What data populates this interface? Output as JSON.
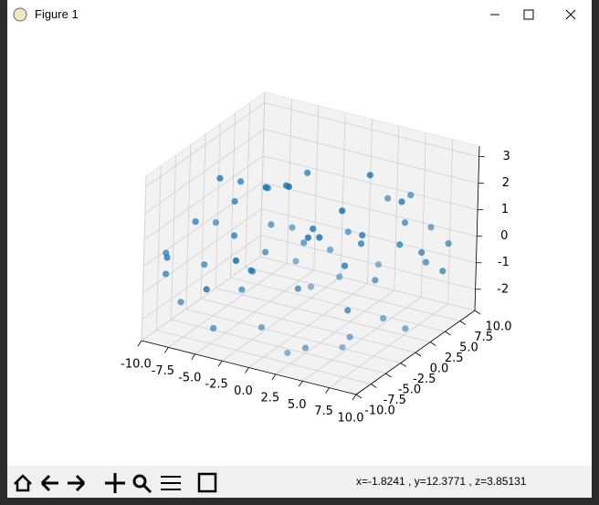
{
  "window": {
    "title": "Figure 1",
    "status": "x=-1.8241    , y=12.3771    , z=3.85131"
  },
  "chart_data": {
    "type": "scatter3d",
    "color": "#1f77b4",
    "x": [
      -9,
      -8,
      -7,
      -6,
      -5,
      -4,
      -3,
      -2,
      -1,
      0,
      1,
      2,
      3,
      4,
      5,
      6,
      7,
      8,
      9,
      -9.5,
      -7.5,
      -5.5,
      -3.5,
      -1.5,
      0.5,
      2.5,
      4.5,
      6.5,
      8.5,
      -8.5,
      -6.5,
      -4.5,
      -2.5,
      -0.5,
      1.5,
      3.5,
      5.5,
      7.5,
      9.5,
      -9,
      -6,
      -3,
      0,
      3,
      6,
      9,
      -7,
      -4,
      -1,
      2,
      5,
      8,
      -8,
      -2,
      4,
      7,
      -5,
      1,
      6,
      -10
    ],
    "y": [
      -8,
      -5,
      -9,
      -2,
      -7,
      3,
      -6,
      -4,
      1,
      -8,
      -3,
      5,
      -9,
      -1,
      2,
      -6,
      4,
      -2,
      7,
      0,
      6,
      -3,
      8,
      -7,
      9,
      -5,
      7,
      1,
      -4,
      -9,
      2,
      -8,
      5,
      -1,
      -6,
      9,
      -3,
      6,
      3,
      4,
      -7,
      -2,
      6,
      -8,
      8,
      0,
      9,
      7,
      -5,
      3,
      -9,
      8,
      -1,
      9,
      -4,
      -7,
      -3,
      7,
      5,
      -6
    ],
    "z": [
      -0.5,
      1.1,
      -1.2,
      0.3,
      -2.3,
      1.6,
      -0.8,
      0.4,
      2.7,
      -1.6,
      0.9,
      -0.3,
      -2.1,
      1.3,
      -0.9,
      0.6,
      2.2,
      -1.4,
      0.1,
      -2.4,
      0.7,
      1.8,
      -1.1,
      0.2,
      1.5,
      -2.6,
      -0.4,
      2.5,
      1.0,
      0.5,
      -1.7,
      1.9,
      -0.2,
      -1.3,
      2.0,
      0.8,
      -2.2,
      -0.6,
      1.4,
      -1.9,
      0.0,
      2.4,
      -1.5,
      1.2,
      -0.7,
      -2.0,
      0.3,
      -1.0,
      1.7,
      -2.5,
      0.6,
      -1.2,
      2.1,
      -0.1,
      1.1,
      -1.8,
      2.6,
      -0.4,
      0.9,
      -0.3
    ],
    "xlim": [
      -10,
      10
    ],
    "ylim": [
      -10,
      10
    ],
    "zlim": [
      -2.8,
      3.4
    ],
    "xticks": [
      {
        "value": -10,
        "label": "-10.0"
      },
      -7.5,
      {
        "value": -5,
        "label": "-5.0"
      },
      -2.5,
      {
        "value": 0,
        "label": "0.0"
      },
      2.5,
      {
        "value": 5,
        "label": "5.0"
      },
      7.5,
      {
        "value": 10,
        "label": "10.0"
      }
    ],
    "yticks": [
      {
        "value": -10,
        "label": "-10.0"
      },
      -7.5,
      {
        "value": -5,
        "label": "-5.0"
      },
      -2.5,
      {
        "value": 0,
        "label": "0.0"
      },
      2.5,
      {
        "value": 5,
        "label": "5.0"
      },
      7.5,
      {
        "value": 10,
        "label": "10.0"
      }
    ],
    "zticks": [
      -2,
      -1,
      0,
      1,
      2,
      3
    ],
    "grid": true
  }
}
